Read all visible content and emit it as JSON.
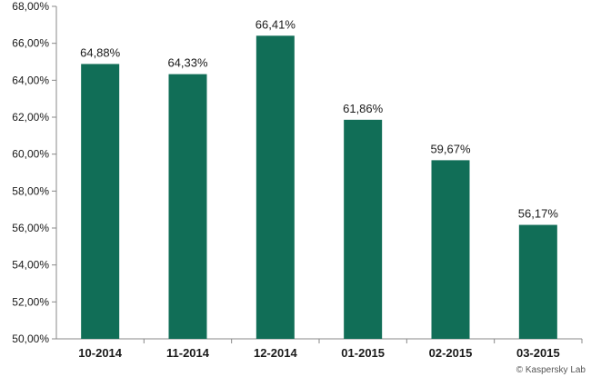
{
  "chart_data": {
    "type": "bar",
    "categories": [
      "10-2014",
      "11-2014",
      "12-2014",
      "01-2015",
      "02-2015",
      "03-2015"
    ],
    "values": [
      64.88,
      64.33,
      66.41,
      61.86,
      59.67,
      56.17
    ],
    "data_labels": [
      "64,88%",
      "64,33%",
      "66,41%",
      "61,86%",
      "59,67%",
      "56,17%"
    ],
    "ylim": [
      50,
      68
    ],
    "yticks": [
      50,
      52,
      54,
      56,
      58,
      60,
      62,
      64,
      66,
      68
    ],
    "ytick_labels": [
      "50,00%",
      "52,00%",
      "54,00%",
      "56,00%",
      "58,00%",
      "60,00%",
      "62,00%",
      "64,00%",
      "66,00%",
      "68,00%"
    ],
    "title": "",
    "xlabel": "",
    "ylabel": "",
    "grid": false,
    "bar_color": "#116e57",
    "axis_color": "#888888"
  },
  "credit": "© Kaspersky Lab"
}
